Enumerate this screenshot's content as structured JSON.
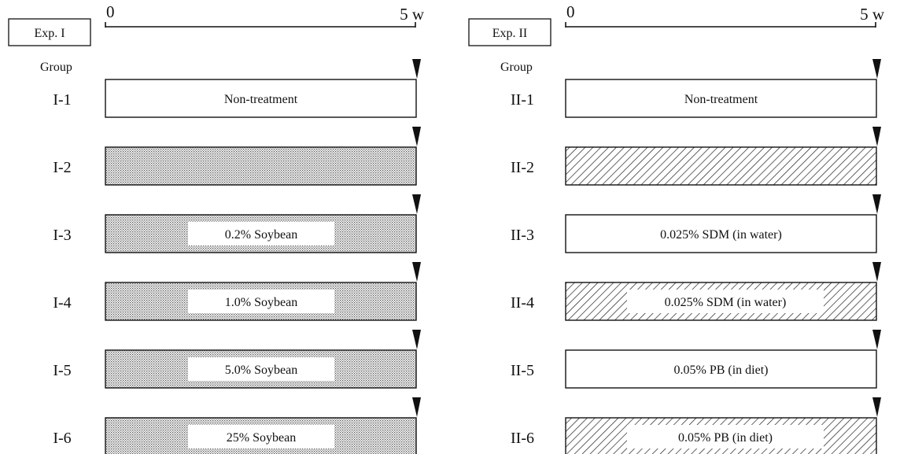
{
  "exp1": {
    "label": "Exp. I",
    "time_start": "0",
    "time_end": "5 w",
    "group_header": "Group",
    "groups": [
      {
        "id": "I-1",
        "pattern": "blank",
        "text": "Non-treatment"
      },
      {
        "id": "I-2",
        "pattern": "dotted",
        "text": ""
      },
      {
        "id": "I-3",
        "pattern": "dotted",
        "text": "0.2% Soybean"
      },
      {
        "id": "I-4",
        "pattern": "dotted",
        "text": "1.0% Soybean"
      },
      {
        "id": "I-5",
        "pattern": "dotted",
        "text": "5.0% Soybean"
      },
      {
        "id": "I-6",
        "pattern": "dotted",
        "text": "25% Soybean"
      }
    ]
  },
  "exp2": {
    "label": "Exp. II",
    "time_start": "0",
    "time_end": "5 w",
    "group_header": "Group",
    "groups": [
      {
        "id": "II-1",
        "pattern": "blank",
        "text": "Non-treatment"
      },
      {
        "id": "II-2",
        "pattern": "hatched",
        "text": ""
      },
      {
        "id": "II-3",
        "pattern": "blank",
        "text": "0.025% SDM (in water)"
      },
      {
        "id": "II-4",
        "pattern": "hatched",
        "text": "0.025% SDM (in water)"
      },
      {
        "id": "II-5",
        "pattern": "blank",
        "text": "0.05% PB (in diet)"
      },
      {
        "id": "II-6",
        "pattern": "hatched",
        "text": "0.05% PB (in diet)"
      }
    ]
  }
}
